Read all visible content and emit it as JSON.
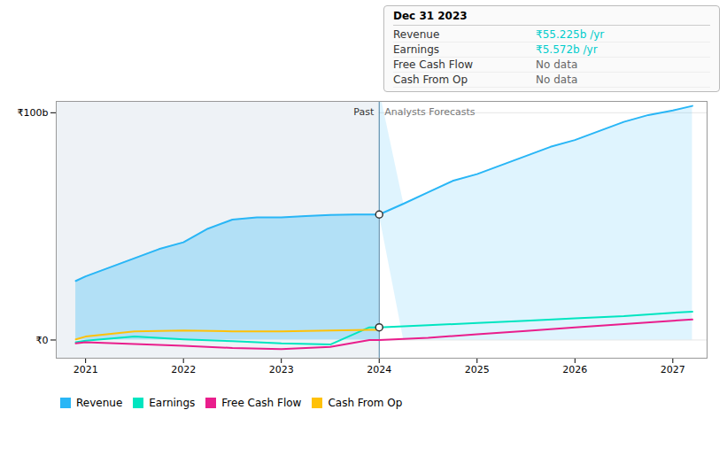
{
  "chart_data": {
    "type": "line",
    "xlim": [
      2020.7,
      2027.35
    ],
    "xticks": [
      2021,
      2022,
      2023,
      2024,
      2025,
      2026,
      2027
    ],
    "ylim": [
      -8,
      105
    ],
    "yticks": [
      {
        "value": 0,
        "label": "₹0"
      },
      {
        "value": 100,
        "label": "₹100b"
      }
    ],
    "grid": true,
    "series": [
      {
        "name": "Revenue",
        "color": "#29b6f6",
        "type": "area",
        "x": [
          2020.9,
          2021.0,
          2021.25,
          2021.5,
          2021.75,
          2022.0,
          2022.25,
          2022.5,
          2022.75,
          2023.0,
          2023.25,
          2023.5,
          2023.75,
          2024.0,
          2024.0,
          2024.25,
          2024.5,
          2024.75,
          2025.0,
          2025.25,
          2025.5,
          2025.75,
          2026.0,
          2026.25,
          2026.5,
          2026.75,
          2027.0,
          2027.2
        ],
        "values": [
          26,
          28,
          32,
          36,
          40,
          43,
          49,
          53,
          54,
          54,
          54.5,
          55,
          55.225,
          55.225,
          55.225,
          60,
          65,
          70,
          73,
          77,
          81,
          85,
          88,
          92,
          96,
          99,
          101,
          103
        ]
      },
      {
        "name": "Earnings",
        "color": "#00e5c0",
        "type": "line",
        "x": [
          2020.9,
          2021.0,
          2021.5,
          2022.0,
          2022.5,
          2023.0,
          2023.5,
          2023.9,
          2024.0,
          2024.0,
          2024.5,
          2025.0,
          2025.5,
          2026.0,
          2026.5,
          2027.0,
          2027.2
        ],
        "values": [
          -1.0,
          -0.3,
          1.5,
          0.3,
          -0.5,
          -1.5,
          -2.0,
          5.572,
          5.572,
          5.572,
          6.5,
          7.5,
          8.5,
          9.5,
          10.5,
          12.0,
          12.5
        ]
      },
      {
        "name": "Free Cash Flow",
        "color": "#e91e8c",
        "type": "line",
        "x": [
          2020.9,
          2021.0,
          2021.5,
          2022.0,
          2022.5,
          2023.0,
          2023.5,
          2023.9,
          2024.0,
          2024.0,
          2024.5,
          2025.0,
          2025.5,
          2026.0,
          2026.5,
          2027.0,
          2027.2
        ],
        "values": [
          -1.5,
          -1.0,
          -1.8,
          -2.5,
          -3.5,
          -4.0,
          -3.0,
          0.0,
          0.0,
          0.0,
          1.0,
          2.5,
          4.0,
          5.5,
          7.0,
          8.5,
          9.0
        ]
      },
      {
        "name": "Cash From Op",
        "color": "#ffc107",
        "type": "line",
        "x": [
          2020.9,
          2021.0,
          2021.5,
          2022.0,
          2022.5,
          2023.0,
          2023.5,
          2023.9,
          2024.0
        ],
        "values": [
          0.3,
          1.5,
          3.8,
          4.2,
          3.8,
          3.8,
          4.2,
          4.5,
          4.5
        ]
      }
    ],
    "markers": [
      {
        "x": 2024.0,
        "y": 55.225
      },
      {
        "x": 2024.0,
        "y": 5.572
      }
    ],
    "divider": {
      "x": 2024.0,
      "labels": [
        "Past",
        "Analysts Forecasts"
      ]
    },
    "tooltip": {
      "title": "Dec 31 2023",
      "rows": [
        {
          "label": "Revenue",
          "value": "₹55.225b /yr",
          "color": "#00cccc"
        },
        {
          "label": "Earnings",
          "value": "₹5.572b /yr",
          "color": "#00cccc"
        },
        {
          "label": "Free Cash Flow",
          "value": "No data",
          "color": "#666666"
        },
        {
          "label": "Cash From Op",
          "value": "No data",
          "color": "#666666"
        }
      ]
    },
    "legend": "bottom"
  }
}
